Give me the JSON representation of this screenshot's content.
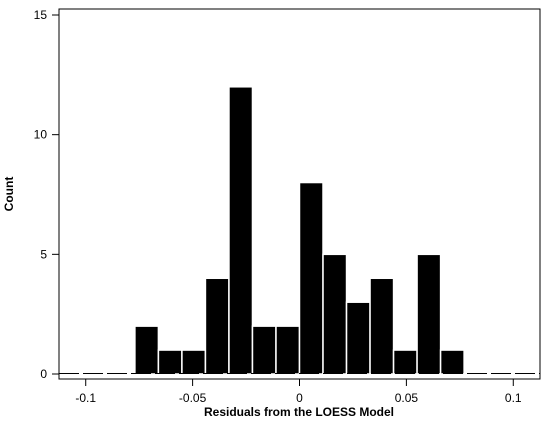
{
  "chart_data": {
    "type": "bar",
    "title": "",
    "xlabel": "Residuals from the LOESS Model",
    "ylabel": "Count",
    "xlim": [
      -0.1125,
      0.1125
    ],
    "ylim": [
      0,
      15
    ],
    "x_ticks": [
      -0.1,
      -0.05,
      0,
      0.05,
      0.1
    ],
    "x_tick_labels": [
      "-0.1",
      "-0.05",
      "0",
      "0.05",
      "0.1"
    ],
    "y_ticks": [
      0,
      5,
      10,
      15
    ],
    "y_tick_labels": [
      "0",
      "5",
      "10",
      "15"
    ],
    "bin_width": 0.011,
    "bin_centers": [
      -0.1045,
      -0.0935,
      -0.0825,
      -0.0715,
      -0.0605,
      -0.0495,
      -0.0385,
      -0.0275,
      -0.0165,
      -0.0055,
      0.0055,
      0.0165,
      0.0275,
      0.0385,
      0.0495,
      0.0605,
      0.0715,
      0.0825,
      0.0935,
      0.1045
    ],
    "values": [
      0,
      0,
      0,
      2,
      1,
      1,
      4,
      12,
      2,
      2,
      8,
      5,
      3,
      4,
      1,
      5,
      1,
      0,
      0,
      0
    ],
    "bar_color": "#000000",
    "bar_outline": "#ffffff",
    "grid": false,
    "legend": false
  }
}
